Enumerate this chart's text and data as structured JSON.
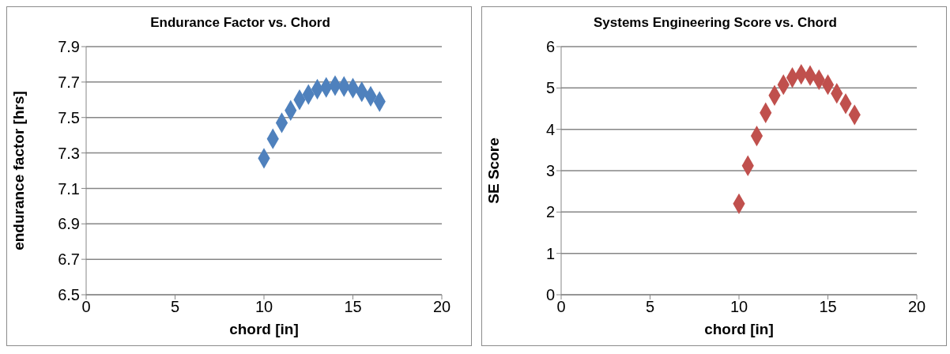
{
  "chart_data": [
    {
      "type": "scatter",
      "title": "Endurance Factor vs. Chord",
      "xlabel": "chord [in]",
      "ylabel": "endurance factor [hrs]",
      "marker": "diamond",
      "grid": "y",
      "x": [
        10,
        10.5,
        11,
        11.5,
        12,
        12.5,
        13,
        13.5,
        14,
        14.5,
        15,
        15.5,
        16,
        16.5
      ],
      "series": [
        {
          "color": "#4f81bd",
          "values": [
            7.27,
            7.38,
            7.47,
            7.54,
            7.6,
            7.63,
            7.66,
            7.67,
            7.68,
            7.675,
            7.665,
            7.645,
            7.62,
            7.59
          ]
        }
      ],
      "xlim": [
        0,
        20
      ],
      "xticks": [
        0,
        5,
        10,
        15,
        20
      ],
      "ylim": [
        6.5,
        7.9
      ],
      "yticks": [
        6.5,
        6.7,
        6.9,
        7.1,
        7.3,
        7.5,
        7.7,
        7.9
      ]
    },
    {
      "type": "scatter",
      "title": "Systems Engineering Score vs. Chord",
      "xlabel": "chord [in]",
      "ylabel": "SE Score",
      "marker": "diamond",
      "grid": "y",
      "x": [
        10,
        10.5,
        11,
        11.5,
        12,
        12.5,
        13,
        13.5,
        14,
        14.5,
        15,
        15.5,
        16,
        16.5
      ],
      "series": [
        {
          "color": "#c0504d",
          "values": [
            2.2,
            3.12,
            3.84,
            4.4,
            4.82,
            5.08,
            5.25,
            5.33,
            5.3,
            5.2,
            5.08,
            4.87,
            4.62,
            4.35
          ]
        }
      ],
      "xlim": [
        0,
        20
      ],
      "xticks": [
        0,
        5,
        10,
        15,
        20
      ],
      "ylim": [
        0,
        6
      ],
      "yticks": [
        0,
        1,
        2,
        3,
        4,
        5,
        6
      ]
    }
  ]
}
